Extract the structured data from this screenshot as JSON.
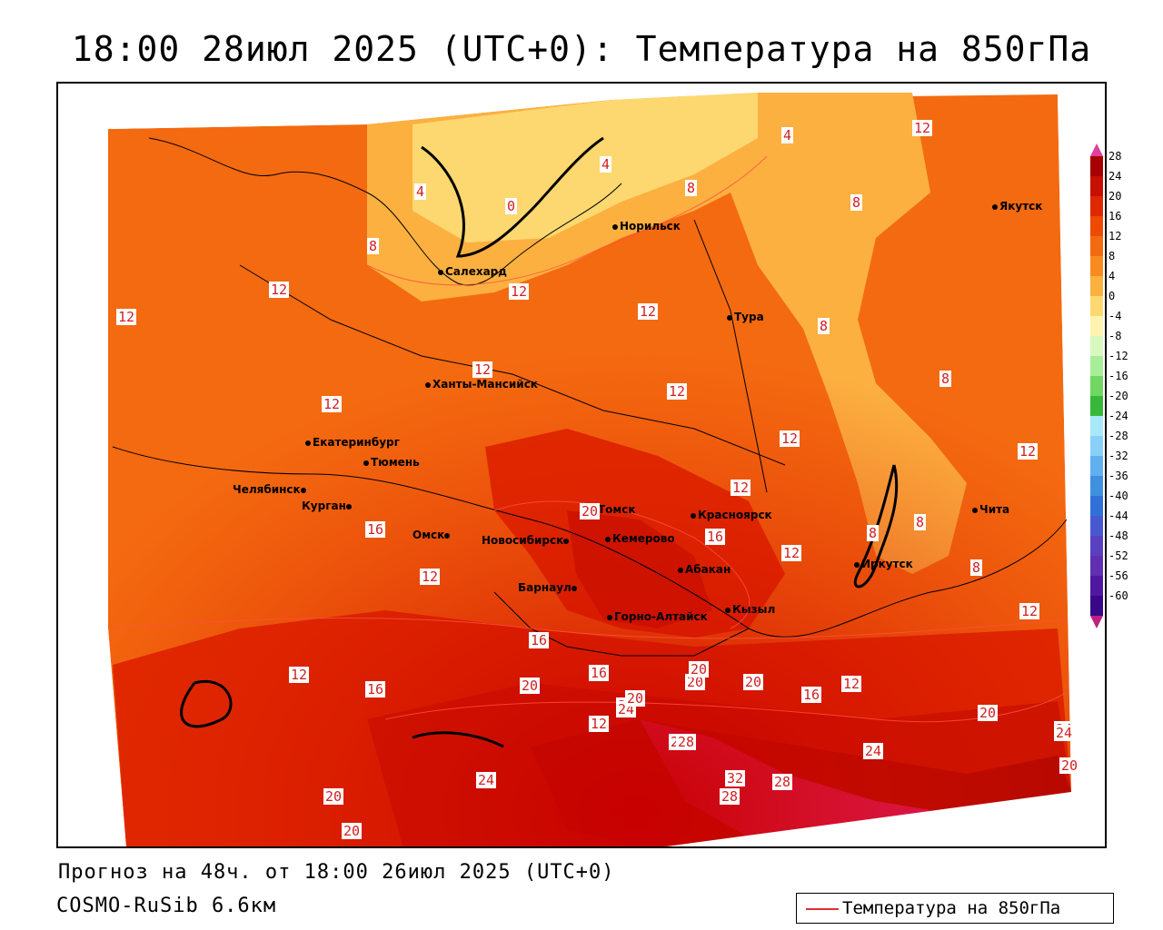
{
  "title": "18:00 28июл 2025 (UTC+0): Температура на 850гПа",
  "footer": {
    "forecast": "Прогноз на 48ч. от 18:00 26июл 2025 (UTC+0)",
    "model": "COSMO-RuSib 6.6км"
  },
  "legend": {
    "label": "Температура на 850гПа",
    "line_color": "#e03030"
  },
  "colorbar": {
    "labels": [
      "28",
      "24",
      "20",
      "16",
      "12",
      "8",
      "4",
      "0",
      "-4",
      "-8",
      "-12",
      "-16",
      "-20",
      "-24",
      "-28",
      "-32",
      "-36",
      "-40",
      "-44",
      "-48",
      "-52",
      "-56",
      "-60"
    ],
    "colors": [
      "#a80000",
      "#c81000",
      "#e02800",
      "#ee4a00",
      "#f46a10",
      "#f88a20",
      "#fcb040",
      "#fdd870",
      "#fff3b0",
      "#d8f8c0",
      "#a8ee98",
      "#70d860",
      "#38b838",
      "#a8e8f8",
      "#88d0f8",
      "#60b0f0",
      "#4090e0",
      "#3070d8",
      "#4858d0",
      "#5840c0",
      "#6030b0",
      "#5018a0",
      "#380888"
    ],
    "top_color": "#e040a0",
    "bottom_color": "#c02080"
  },
  "cities": [
    {
      "name": "Салехард"
    },
    {
      "name": "Норильск"
    },
    {
      "name": "Якутск"
    },
    {
      "name": "Тура"
    },
    {
      "name": "Ханты-Мансийск"
    },
    {
      "name": "Екатеринбург"
    },
    {
      "name": "Тюмень"
    },
    {
      "name": "Челябинск"
    },
    {
      "name": "Курган"
    },
    {
      "name": "Омск"
    },
    {
      "name": "Новосибирск"
    },
    {
      "name": "Томск"
    },
    {
      "name": "Кемерово"
    },
    {
      "name": "Красноярск"
    },
    {
      "name": "Абакан"
    },
    {
      "name": "Барнаул"
    },
    {
      "name": "Горно-Алтайск"
    },
    {
      "name": "Кызыл"
    },
    {
      "name": "Иркутск"
    },
    {
      "name": "Чита"
    }
  ],
  "contour_labels": [
    "12",
    "4",
    "4",
    "4",
    "0",
    "8",
    "8",
    "8",
    "12",
    "12",
    "12",
    "12",
    "12",
    "12",
    "12",
    "12",
    "8",
    "8",
    "20",
    "12",
    "16",
    "12",
    "12",
    "12",
    "16",
    "16",
    "20",
    "24",
    "20",
    "20",
    "12",
    "16",
    "12",
    "16",
    "20",
    "24",
    "28",
    "32",
    "28",
    "28",
    "24",
    "24",
    "20",
    "20",
    "20",
    "20",
    "24",
    "28",
    "24",
    "20",
    "16",
    "12",
    "8",
    "8",
    "8",
    "12"
  ]
}
